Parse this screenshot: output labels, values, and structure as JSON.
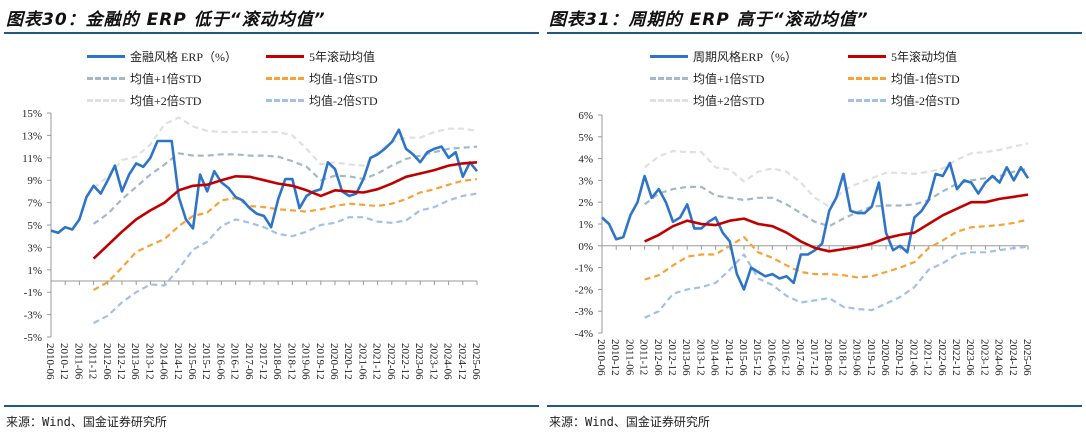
{
  "panels": [
    {
      "title": "图表30：金融的 ERP 低于“滚动均值”",
      "source": "来源：Wind、国金证券研究所",
      "legend": [
        "金融风格 ERP（%）",
        "5年滚动均值",
        "均值+1倍STD",
        "均值-1倍STD",
        "均值+2倍STD",
        "均值-2倍STD"
      ]
    },
    {
      "title": "图表31：周期的 ERP 高于“滚动均值”",
      "source": "来源：Wind、国金证券研究所",
      "legend": [
        "周期风格ERP（%）",
        "5年滚动均值",
        "均值+1倍STD",
        "均值-1倍STD",
        "均值+2倍STD",
        "均值-2倍STD"
      ]
    }
  ],
  "colors": {
    "erp": "#2e75c9",
    "ma": "#c00000",
    "plus1": "#a3b8c8",
    "minus1": "#f7a234",
    "plus2": "#e0e0e0",
    "minus2": "#a2c0e8"
  },
  "chart_data": [
    {
      "type": "line",
      "title": "图表30：金融的 ERP 低于“滚动均值”",
      "ylim": [
        -5,
        15
      ],
      "yticks": [
        15,
        13,
        11,
        9,
        7,
        5,
        3,
        1,
        -1,
        -3,
        -5
      ],
      "ytick_labels": [
        "15%",
        "13%",
        "11%",
        "9%",
        "7%",
        "5%",
        "3%",
        "1%",
        "-1%",
        "-3%",
        "-5%"
      ],
      "legend_position": "top",
      "x": [
        "2010-06",
        "2010-12",
        "2011-06",
        "2011-12",
        "2012-06",
        "2012-12",
        "2013-06",
        "2013-12",
        "2014-06",
        "2014-12",
        "2015-06",
        "2015-12",
        "2016-06",
        "2016-12",
        "2017-06",
        "2017-12",
        "2018-06",
        "2018-12",
        "2019-06",
        "2019-12",
        "2020-06",
        "2020-12",
        "2021-06",
        "2021-12",
        "2022-06",
        "2022-12",
        "2023-06",
        "2023-12",
        "2024-06",
        "2024-12",
        "2025-06"
      ],
      "erp_quarterly": [
        4.5,
        4.3,
        4.8,
        4.6,
        5.5,
        7.5,
        8.5,
        7.8,
        9.0,
        10.3,
        8.0,
        9.5,
        10.5,
        10.2,
        11.0,
        12.5,
        12.5,
        12.5,
        7.5,
        5.5,
        4.7,
        9.5,
        8.0,
        9.8,
        8.8,
        8.3,
        7.5,
        7.2,
        6.5,
        6.0,
        5.8,
        4.8,
        7.3,
        9.1,
        9.1,
        6.5,
        7.6,
        8.0,
        8.2,
        10.6,
        10.0,
        8.0,
        7.6,
        7.8,
        9.1,
        11.0,
        11.3,
        11.8,
        12.4,
        13.5,
        11.8,
        11.3,
        10.6,
        11.5,
        11.8,
        12.0,
        11.0,
        11.5,
        9.3,
        10.6,
        9.8
      ],
      "series": [
        {
          "name": "5年滚动均值",
          "key": "ma",
          "values": [
            null,
            null,
            null,
            2.0,
            3.2,
            4.4,
            5.5,
            6.3,
            7.0,
            8.1,
            8.5,
            8.6,
            9.0,
            9.35,
            9.3,
            9.0,
            8.7,
            8.5,
            8.1,
            7.6,
            8.1,
            8.0,
            7.9,
            8.2,
            8.7,
            9.3,
            9.6,
            9.9,
            10.3,
            10.5,
            10.6
          ]
        },
        {
          "name": "均值+1倍STD",
          "key": "plus1",
          "values": [
            null,
            null,
            null,
            5.1,
            6.0,
            7.3,
            8.4,
            9.5,
            10.4,
            11.4,
            11.2,
            11.2,
            11.3,
            11.3,
            11.2,
            11.2,
            11.1,
            10.7,
            10.2,
            9.0,
            9.4,
            9.35,
            9.1,
            9.6,
            10.3,
            10.9,
            11.2,
            11.5,
            11.8,
            11.9,
            12.0
          ]
        },
        {
          "name": "均值-1倍STD",
          "key": "minus1",
          "values": [
            null,
            null,
            null,
            -0.8,
            -0.1,
            1.2,
            2.6,
            3.2,
            3.75,
            4.9,
            5.8,
            6.1,
            7.2,
            7.4,
            6.7,
            6.6,
            6.4,
            6.3,
            6.2,
            6.4,
            6.7,
            6.9,
            6.8,
            6.7,
            6.9,
            7.3,
            7.9,
            8.2,
            8.6,
            8.95,
            9.1
          ]
        },
        {
          "name": "均值+2倍STD",
          "key": "plus2",
          "values": [
            null,
            null,
            null,
            8.3,
            9.3,
            10.8,
            11.1,
            12.2,
            14.0,
            14.6,
            13.8,
            13.4,
            13.3,
            13.3,
            13.3,
            13.3,
            13.3,
            13.0,
            11.8,
            10.4,
            10.6,
            10.4,
            10.3,
            11.5,
            12.4,
            12.8,
            12.8,
            13.3,
            13.6,
            13.6,
            13.4
          ]
        },
        {
          "name": "均值-2倍STD",
          "key": "minus2",
          "values": [
            null,
            null,
            null,
            -3.75,
            -3.1,
            -1.9,
            -1.0,
            -0.3,
            -0.4,
            1.1,
            2.8,
            3.5,
            4.9,
            5.5,
            5.2,
            4.8,
            4.2,
            4.0,
            4.4,
            5.0,
            5.2,
            5.7,
            5.7,
            5.3,
            5.2,
            5.4,
            6.3,
            6.6,
            7.2,
            7.6,
            7.8
          ]
        }
      ]
    },
    {
      "type": "line",
      "title": "图表31：周期的 ERP 高于“滚动均值”",
      "ylim": [
        -4,
        6
      ],
      "yticks": [
        6,
        5,
        4,
        3,
        2,
        1,
        0,
        -1,
        -2,
        -3,
        -4
      ],
      "ytick_labels": [
        "6%",
        "5%",
        "4%",
        "3%",
        "2%",
        "1%",
        "0%",
        "-1%",
        "-2%",
        "-3%",
        "-4%"
      ],
      "legend_position": "top",
      "x": [
        "2010-06",
        "2010-12",
        "2011-06",
        "2011-12",
        "2012-06",
        "2012-12",
        "2013-06",
        "2013-12",
        "2014-06",
        "2014-12",
        "2015-06",
        "2015-12",
        "2016-06",
        "2016-12",
        "2017-06",
        "2017-12",
        "2018-06",
        "2018-12",
        "2019-06",
        "2019-12",
        "2020-06",
        "2020-12",
        "2021-06",
        "2021-12",
        "2022-06",
        "2022-12",
        "2023-06",
        "2023-12",
        "2024-06",
        "2024-12",
        "2025-06"
      ],
      "erp_quarterly": [
        1.3,
        1.0,
        0.3,
        0.4,
        1.4,
        2.0,
        3.2,
        2.2,
        2.6,
        2.0,
        1.1,
        1.3,
        1.9,
        0.8,
        0.8,
        1.1,
        1.3,
        0.6,
        0.2,
        -1.3,
        -2.0,
        -1.0,
        -1.2,
        -1.4,
        -1.3,
        -1.5,
        -1.4,
        -1.7,
        -0.4,
        -0.4,
        -0.2,
        0.1,
        1.6,
        2.2,
        3.3,
        1.6,
        1.5,
        1.5,
        1.8,
        2.9,
        0.6,
        -0.2,
        0.0,
        -0.3,
        1.3,
        1.6,
        2.1,
        3.3,
        3.2,
        3.8,
        2.6,
        3.0,
        2.9,
        2.4,
        2.9,
        3.2,
        2.9,
        3.6,
        3.0,
        3.6,
        3.1
      ],
      "series": [
        {
          "name": "5年滚动均值",
          "key": "ma",
          "values": [
            null,
            null,
            null,
            0.2,
            0.5,
            0.9,
            1.15,
            1.0,
            0.95,
            1.15,
            1.25,
            1.0,
            0.9,
            0.6,
            0.2,
            -0.1,
            -0.25,
            -0.15,
            -0.05,
            0.1,
            0.35,
            0.5,
            0.6,
            1.0,
            1.4,
            1.7,
            2.0,
            2.0,
            2.15,
            2.25,
            2.35
          ]
        },
        {
          "name": "均值+1倍STD",
          "key": "plus1",
          "values": [
            null,
            null,
            null,
            1.9,
            2.4,
            2.6,
            2.7,
            2.7,
            2.3,
            2.2,
            2.1,
            2.2,
            2.2,
            1.9,
            1.5,
            1.1,
            0.9,
            1.25,
            1.55,
            1.8,
            1.85,
            1.85,
            1.9,
            2.1,
            2.5,
            2.85,
            3.0,
            3.1,
            3.2,
            3.4,
            3.55
          ]
        },
        {
          "name": "均值-1倍STD",
          "key": "minus1",
          "values": [
            null,
            null,
            null,
            -1.55,
            -1.35,
            -0.9,
            -0.5,
            -0.4,
            -0.4,
            0.0,
            0.4,
            -0.3,
            -0.55,
            -0.9,
            -1.2,
            -1.3,
            -1.3,
            -1.35,
            -1.45,
            -1.4,
            -1.2,
            -1.0,
            -0.75,
            -0.1,
            0.25,
            0.65,
            0.85,
            0.9,
            0.95,
            1.05,
            1.2
          ]
        },
        {
          "name": "均值+2倍STD",
          "key": "plus2",
          "values": [
            null,
            null,
            null,
            3.6,
            4.1,
            4.35,
            4.3,
            4.3,
            3.6,
            3.5,
            2.95,
            3.4,
            3.55,
            3.4,
            2.9,
            2.2,
            1.8,
            2.55,
            2.85,
            3.1,
            3.35,
            3.35,
            3.3,
            3.4,
            3.55,
            3.95,
            4.25,
            4.3,
            4.4,
            4.55,
            4.7
          ]
        },
        {
          "name": "均值-2倍STD",
          "key": "minus2",
          "values": [
            null,
            null,
            null,
            -3.3,
            -3.0,
            -2.2,
            -2.0,
            -1.9,
            -1.7,
            -1.1,
            -0.4,
            -1.5,
            -1.8,
            -2.3,
            -2.6,
            -2.5,
            -2.4,
            -2.8,
            -2.9,
            -2.95,
            -2.65,
            -2.35,
            -1.9,
            -1.1,
            -0.8,
            -0.4,
            -0.3,
            -0.3,
            -0.2,
            -0.1,
            -0.05
          ]
        }
      ]
    }
  ]
}
